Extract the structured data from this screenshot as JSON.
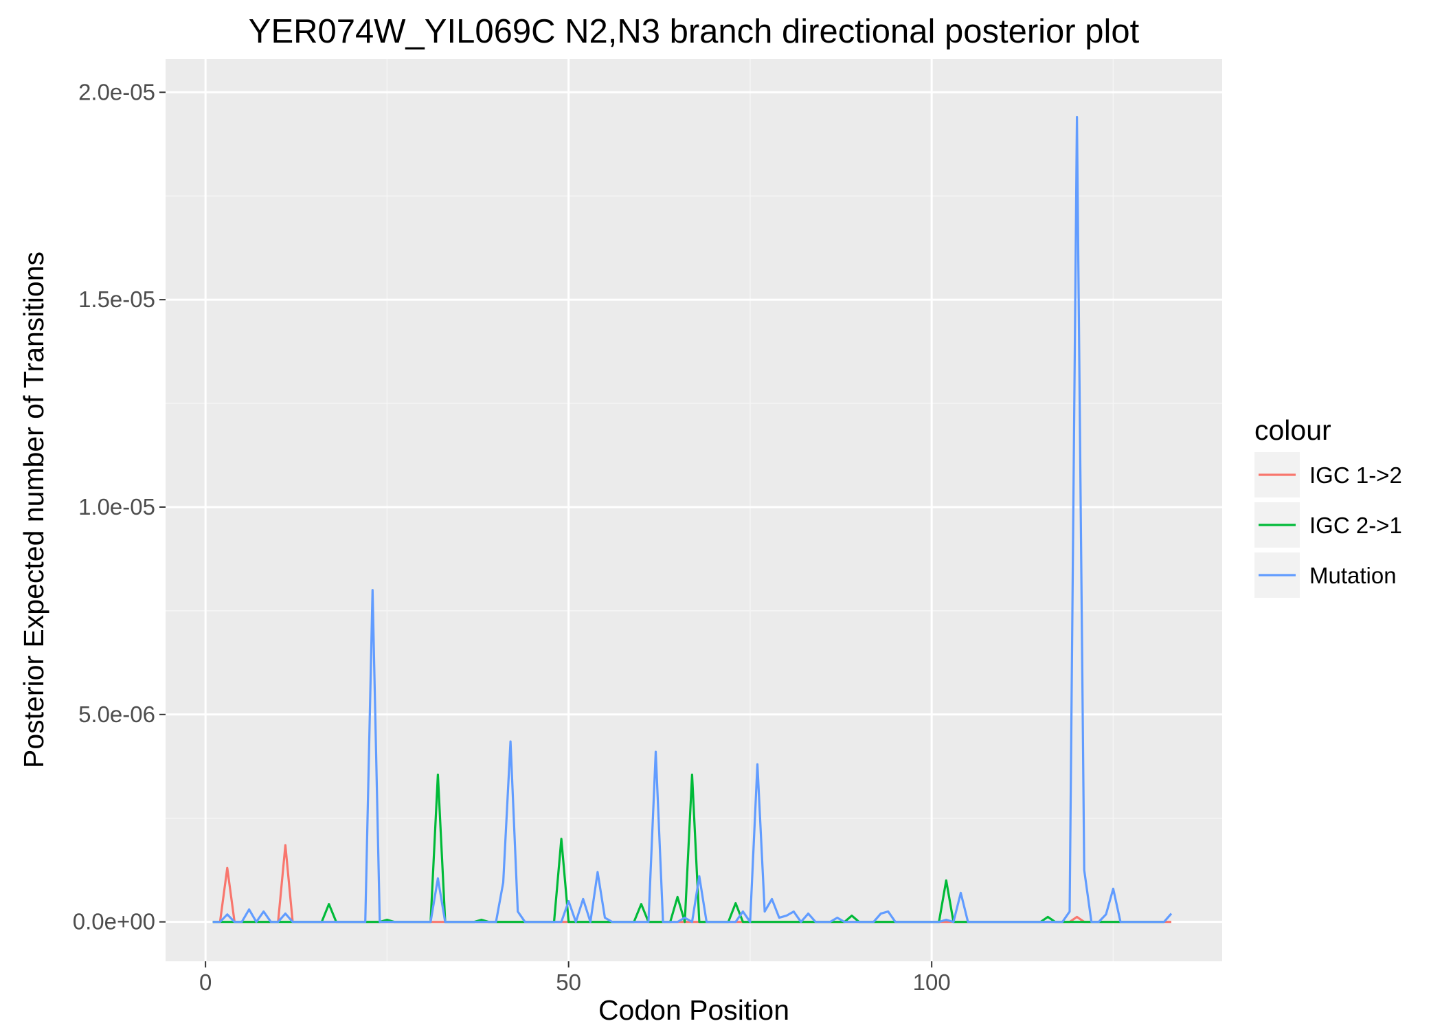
{
  "chart_data": {
    "type": "line",
    "title": "YER074W_YIL069C N2,N3 branch directional posterior plot",
    "xlabel": "Codon Position",
    "ylabel": "Posterior Expected number of Transitions",
    "xlim": [
      -5.5,
      140
    ],
    "ylim": [
      -9.5e-07,
      2.08e-05
    ],
    "x_ticks": [
      0,
      50,
      100
    ],
    "x_tick_labels": [
      "0",
      "50",
      "100"
    ],
    "y_ticks": [
      0,
      5e-06,
      1e-05,
      1.5e-05,
      2e-05
    ],
    "y_tick_labels": [
      "0.0e+00",
      "5.0e-06",
      "1.0e-05",
      "1.5e-05",
      "2.0e-05"
    ],
    "grid": true,
    "legend_position": "right",
    "legend_title": "colour",
    "x_start": 1,
    "series": [
      {
        "name": "IGC 1->2",
        "color": "#F8766D",
        "values": [
          0,
          0,
          1.3e-06,
          0,
          0,
          0,
          0,
          0,
          0,
          0,
          1.85e-06,
          0,
          0,
          0,
          0,
          0,
          0,
          0,
          0,
          0,
          0,
          0,
          0,
          0,
          0,
          0,
          0,
          0,
          0,
          0,
          0,
          0,
          0,
          0,
          0,
          0,
          0,
          0,
          0,
          0,
          0,
          0,
          0,
          0,
          0,
          0,
          0,
          0,
          0,
          0,
          0,
          0,
          0,
          0,
          0,
          0,
          0,
          0,
          0,
          0,
          0,
          0,
          0,
          0,
          0,
          0,
          0,
          0,
          0,
          0,
          0,
          0,
          0,
          0,
          0,
          0,
          0,
          0,
          0,
          0,
          0,
          0,
          0,
          0,
          0,
          0,
          0,
          0,
          0,
          0,
          0,
          0,
          0,
          0,
          0,
          0,
          0,
          0,
          0,
          0,
          0,
          0,
          0,
          0,
          0,
          0,
          0,
          0,
          0,
          0,
          0,
          0,
          0,
          0,
          0,
          0,
          0,
          0,
          0,
          1.2e-07,
          0,
          0,
          0,
          0,
          0,
          0,
          0,
          0,
          0,
          0,
          0,
          0,
          0
        ]
      },
      {
        "name": "IGC 2->1",
        "color": "#00BA38",
        "values": [
          0,
          0,
          0,
          0,
          0,
          0,
          0,
          0,
          0,
          0,
          0,
          0,
          0,
          0,
          0,
          0,
          4.3e-07,
          0,
          0,
          0,
          0,
          0,
          0,
          0,
          5e-08,
          0,
          0,
          0,
          0,
          0,
          0,
          3.55e-06,
          0,
          0,
          0,
          0,
          0,
          5e-08,
          0,
          0,
          0,
          0,
          0,
          0,
          0,
          0,
          0,
          0,
          2e-06,
          0,
          0,
          0,
          0,
          0,
          0,
          0,
          0,
          0,
          0,
          4.3e-07,
          0,
          0,
          0,
          0,
          6e-07,
          0,
          3.55e-06,
          0,
          0,
          0,
          0,
          0,
          4.5e-07,
          0,
          0,
          0,
          0,
          0,
          0,
          0,
          0,
          0,
          0,
          0,
          0,
          0,
          0,
          0,
          1.5e-07,
          0,
          0,
          0,
          0,
          0,
          0,
          0,
          0,
          0,
          0,
          0,
          0,
          1e-06,
          0,
          0,
          0,
          0,
          0,
          0,
          0,
          0,
          0,
          0,
          0,
          0,
          0,
          1.2e-07,
          0,
          0,
          0,
          0,
          0,
          0,
          0,
          0,
          0,
          0,
          0,
          0,
          0,
          0,
          0,
          0
        ]
      },
      {
        "name": "Mutation",
        "color": "#619CFF",
        "values": [
          0,
          0,
          1.8e-07,
          0,
          0,
          3e-07,
          0,
          2.5e-07,
          0,
          0,
          2e-07,
          0,
          0,
          0,
          0,
          0,
          0,
          0,
          0,
          0,
          0,
          0,
          8e-06,
          0,
          0,
          0,
          0,
          0,
          0,
          0,
          0,
          1.05e-06,
          0,
          0,
          0,
          0,
          0,
          0,
          0,
          0,
          9.5e-07,
          4.35e-06,
          2.5e-07,
          0,
          0,
          0,
          0,
          0,
          0,
          5e-07,
          0,
          5.5e-07,
          0,
          1.2e-06,
          1e-07,
          0,
          0,
          0,
          0,
          0,
          0,
          4.1e-06,
          0,
          0,
          0,
          1e-07,
          0,
          1.1e-06,
          0,
          0,
          0,
          0,
          0,
          2.5e-07,
          0,
          3.8e-06,
          2.5e-07,
          5.5e-07,
          1e-07,
          1.5e-07,
          2.5e-07,
          0,
          2e-07,
          0,
          0,
          0,
          1e-07,
          0,
          0,
          0,
          0,
          0,
          2e-07,
          2.5e-07,
          0,
          0,
          0,
          0,
          0,
          0,
          0,
          5e-08,
          0,
          7e-07,
          0,
          0,
          0,
          0,
          0,
          0,
          0,
          0,
          0,
          0,
          0,
          0,
          0,
          0,
          2.5e-07,
          1.94e-05,
          1.25e-06,
          0,
          0,
          1.8e-07,
          8e-07,
          0,
          0,
          0,
          0,
          0,
          0,
          0,
          2e-07
        ]
      }
    ]
  }
}
